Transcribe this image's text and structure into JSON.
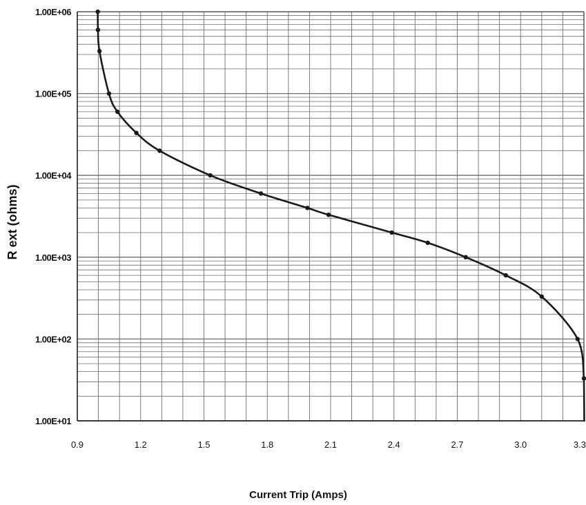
{
  "chart_data": {
    "type": "line",
    "title": "",
    "xlabel": "Current Trip (Amps)",
    "ylabel": "R ext (ohms)",
    "xlim": [
      0.9,
      3.3
    ],
    "ylim": [
      10,
      1000000
    ],
    "yscale": "log",
    "grid": true,
    "x_ticks": [
      "0.9",
      "1.2",
      "1.5",
      "1.8",
      "2.1",
      "2.4",
      "2.7",
      "3.0",
      "3.3"
    ],
    "y_ticks": [
      "1.00E+01",
      "1.00E+02",
      "1.00E+03",
      "1.00E+04",
      "1.00E+05",
      "1.00E+06"
    ],
    "series": [
      {
        "points": [
          {
            "x": 0.997,
            "y": 1000000
          },
          {
            "x": 0.998,
            "y": 600000
          },
          {
            "x": 1.005,
            "y": 330000
          },
          {
            "x": 1.05,
            "y": 100000
          },
          {
            "x": 1.09,
            "y": 60000
          },
          {
            "x": 1.18,
            "y": 33000
          },
          {
            "x": 1.29,
            "y": 20000
          },
          {
            "x": 1.53,
            "y": 10000
          },
          {
            "x": 1.77,
            "y": 6000
          },
          {
            "x": 1.99,
            "y": 4000
          },
          {
            "x": 2.09,
            "y": 3300
          },
          {
            "x": 2.39,
            "y": 2000
          },
          {
            "x": 2.56,
            "y": 1500
          },
          {
            "x": 2.74,
            "y": 1000
          },
          {
            "x": 2.93,
            "y": 600
          },
          {
            "x": 3.1,
            "y": 330
          },
          {
            "x": 3.27,
            "y": 100
          },
          {
            "x": 3.3,
            "y": 33
          }
        ]
      }
    ],
    "colors": {
      "line": "#1a1a1a",
      "grid": "#6e6e6e",
      "background": "#ffffff"
    }
  }
}
